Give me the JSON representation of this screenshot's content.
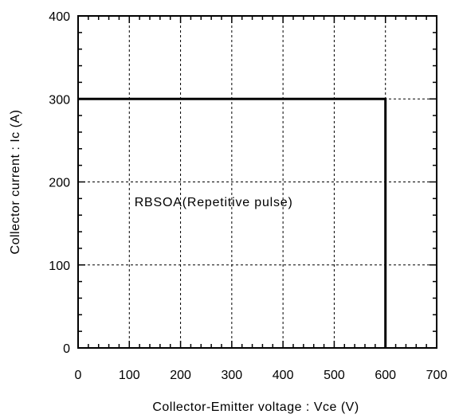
{
  "chart_data": {
    "type": "line",
    "title": "",
    "xlabel": "Collector-Emitter voltage : Vce (V)",
    "ylabel": "Collector current : Ic (A)",
    "xlim": [
      0,
      700
    ],
    "ylim": [
      0,
      400
    ],
    "x_ticks": [
      0,
      100,
      200,
      300,
      400,
      500,
      600,
      700
    ],
    "y_ticks": [
      0,
      100,
      200,
      300,
      400
    ],
    "grid": true,
    "grid_style": "dashed",
    "series": [
      {
        "x": [
          0,
          600,
          600
        ],
        "y": [
          300,
          300,
          0
        ],
        "color": "#000000"
      }
    ],
    "annotations": [
      {
        "text": "RBSOA(Repetitive pulse)",
        "x": 110,
        "y": 165
      }
    ]
  }
}
